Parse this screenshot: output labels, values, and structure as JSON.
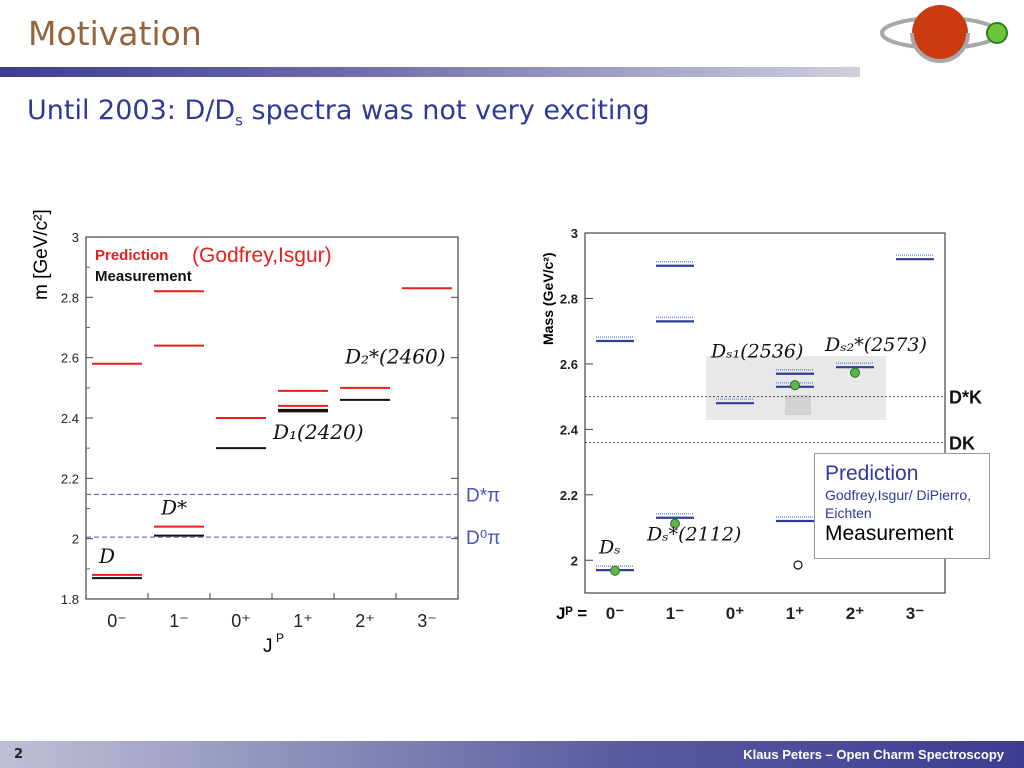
{
  "slide": {
    "title": "Motivation",
    "subtitle_main": "Until 2003: D/D",
    "subtitle_sub": "s",
    "subtitle_rest": " spectra was not very exciting",
    "page_number": "2",
    "footer": "Klaus Peters – Open Charm Spectroscopy"
  },
  "colors": {
    "prediction": "#e8201c",
    "measurement": "#111111",
    "prediction_ds": "#2e3f96",
    "threshold": "#4a55c0",
    "green": "#5cb846"
  },
  "chart_data": [
    {
      "type": "scatter",
      "ylabel": "m [GeV/c²]",
      "xlabel": "J",
      "xlabel_sup": "P",
      "ylim": [
        1.8,
        3.0
      ],
      "yticks": [
        "1.8",
        "2",
        "2.2",
        "2.4",
        "2.6",
        "2.8",
        "3"
      ],
      "categories": [
        "0⁻",
        "1⁻",
        "0⁺",
        "1⁺",
        "2⁺",
        "3⁻"
      ],
      "legend": [
        "Prediction",
        "Measurement"
      ],
      "legend_ref": "(Godfrey,Isgur)",
      "series": [
        {
          "name": "Prediction",
          "points": [
            {
              "x": 0,
              "y": 1.88
            },
            {
              "x": 0,
              "y": 2.58
            },
            {
              "x": 1,
              "y": 2.04
            },
            {
              "x": 1,
              "y": 2.64
            },
            {
              "x": 1,
              "y": 2.82
            },
            {
              "x": 2,
              "y": 2.4
            },
            {
              "x": 3,
              "y": 2.44
            },
            {
              "x": 3,
              "y": 2.49
            },
            {
              "x": 4,
              "y": 2.5
            },
            {
              "x": 5,
              "y": 2.83
            }
          ]
        },
        {
          "name": "Measurement",
          "points": [
            {
              "x": 0,
              "y": 1.869
            },
            {
              "x": 1,
              "y": 2.01
            },
            {
              "x": 2,
              "y": 2.3
            },
            {
              "x": 3,
              "y": 2.422
            },
            {
              "x": 3,
              "y": 2.427
            },
            {
              "x": 4,
              "y": 2.46
            }
          ]
        }
      ],
      "thresholds": [
        {
          "label": "D*π",
          "y": 2.147
        },
        {
          "label": "D⁰π",
          "y": 2.005
        }
      ],
      "annotations": [
        {
          "text": "D",
          "x": 0,
          "y": 1.92
        },
        {
          "text": "D*",
          "x": 1,
          "y": 2.08
        },
        {
          "text": "D₂*(2460)",
          "x": 4,
          "y": 2.58
        },
        {
          "text": "D₁(2420)",
          "x": 3,
          "y": 2.33
        }
      ]
    },
    {
      "type": "scatter",
      "ylabel": "Mass (GeV/c²)",
      "xlabel": "Jᴾ =",
      "ylim": [
        1.9,
        3.0
      ],
      "yticks": [
        "2",
        "2.2",
        "2.4",
        "2.6",
        "2.8",
        "3"
      ],
      "categories": [
        "0⁻",
        "1⁻",
        "0⁺",
        "1⁺",
        "2⁺",
        "3⁻"
      ],
      "legend": [
        "Prediction",
        "Godfrey,Isgur/ DiPierro, Eichten",
        "Measurement"
      ],
      "series": [
        {
          "name": "Prediction",
          "points": [
            {
              "x": 0,
              "y": 1.97
            },
            {
              "x": 0,
              "y": 2.67
            },
            {
              "x": 1,
              "y": 2.13
            },
            {
              "x": 1,
              "y": 2.73
            },
            {
              "x": 1,
              "y": 2.9
            },
            {
              "x": 2,
              "y": 2.48
            },
            {
              "x": 3,
              "y": 2.12
            },
            {
              "x": 3,
              "y": 2.53
            },
            {
              "x": 3,
              "y": 2.57
            },
            {
              "x": 4,
              "y": 2.59
            },
            {
              "x": 5,
              "y": 2.92
            }
          ]
        },
        {
          "name": "Measurement",
          "points": [
            {
              "x": 0,
              "y": 1.968
            },
            {
              "x": 1,
              "y": 2.112
            },
            {
              "x": 3,
              "y": 2.535
            },
            {
              "x": 4,
              "y": 2.573
            }
          ]
        }
      ],
      "thresholds": [
        {
          "label": "D*K",
          "y": 2.5
        },
        {
          "label": "DK",
          "y": 2.36
        }
      ],
      "annotations": [
        {
          "text": "Dₛ",
          "x": 0,
          "y": 2.02
        },
        {
          "text": "Dₛ*(2112)",
          "x": 1,
          "y": 2.06
        },
        {
          "text": "Dₛ₁(2536)",
          "x": 3,
          "y": 2.62
        },
        {
          "text": "Dₛ₂*(2573)",
          "x": 4,
          "y": 2.64
        }
      ]
    }
  ]
}
